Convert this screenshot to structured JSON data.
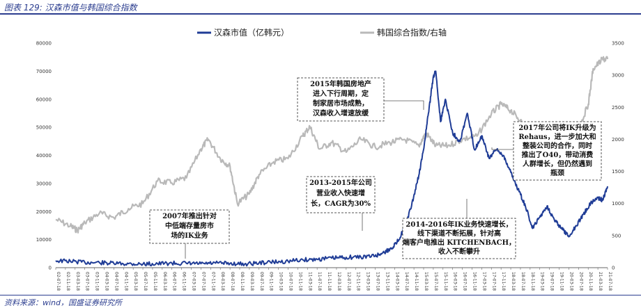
{
  "header": {
    "title": "图表 129: 汉森市值与韩国综合指数"
  },
  "footer": {
    "source": "资料来源：wind，国盛证券研究所"
  },
  "colors": {
    "series_main": "#1f3c96",
    "series_index": "#b9b9b9",
    "note_border": "#555555"
  },
  "chart_data": {
    "type": "line",
    "title": "",
    "legend_position": "top-center",
    "grid": false,
    "y_left": {
      "lim": [
        0,
        80000
      ],
      "ticks": [
        "0",
        "10000",
        "20000",
        "30000",
        "40000",
        "50000",
        "60000",
        "70000",
        "80000"
      ]
    },
    "y_right": {
      "lim": [
        0,
        3500
      ],
      "ticks": [
        "0",
        "500",
        "1000",
        "1500",
        "2000",
        "2500",
        "3000",
        "3500"
      ]
    },
    "x_range": [
      "2002-07-18",
      "2021-07-18"
    ],
    "x_ticks": [
      "02-07-18",
      "02-11-18",
      "03-03-18",
      "03-07-18",
      "03-11-18",
      "04-03-18",
      "04-07-18",
      "04-11-18",
      "05-03-18",
      "05-07-18",
      "05-11-18",
      "06-03-18",
      "06-07-18",
      "06-11-18",
      "07-03-18",
      "07-07-18",
      "07-11-18",
      "08-03-18",
      "08-07-18",
      "08-11-18",
      "09-03-18",
      "09-07-18",
      "09-11-18",
      "10-03-18",
      "10-07-18",
      "10-11-18",
      "11-03-18",
      "11-07-18",
      "11-11-18",
      "12-03-18",
      "12-07-18",
      "12-11-18",
      "13-03-18",
      "13-07-18",
      "13-11-18",
      "14-03-18",
      "14-07-18",
      "14-11-18",
      "15-03-18",
      "15-07-18",
      "15-11-18",
      "16-03-18",
      "16-07-18",
      "16-11-18",
      "17-03-18",
      "17-07-18",
      "17-11-18",
      "18-03-18",
      "18-07-18",
      "18-11-18",
      "19-03-18",
      "19-07-18",
      "19-11-18",
      "20-03-18",
      "20-07-18",
      "20-11-18",
      "21-03-18",
      "21-07-18"
    ],
    "series": [
      {
        "name": "汉森市值（亿韩元）",
        "axis": "left",
        "x": [
          "2002-07-18",
          "2003-01-18",
          "2003-07-18",
          "2004-01-18",
          "2004-07-18",
          "2005-01-18",
          "2005-07-18",
          "2006-01-18",
          "2006-07-18",
          "2007-01-18",
          "2007-07-18",
          "2008-01-18",
          "2008-07-18",
          "2009-01-18",
          "2009-07-18",
          "2010-01-18",
          "2010-07-18",
          "2011-01-18",
          "2011-07-18",
          "2012-01-18",
          "2012-07-18",
          "2013-01-18",
          "2013-07-18",
          "2013-10-18",
          "2014-01-18",
          "2014-04-18",
          "2014-07-18",
          "2014-10-18",
          "2015-01-18",
          "2015-03-18",
          "2015-05-18",
          "2015-07-18",
          "2015-08-18",
          "2015-10-18",
          "2015-12-18",
          "2016-03-18",
          "2016-06-18",
          "2016-09-18",
          "2016-12-18",
          "2017-03-18",
          "2017-06-18",
          "2017-09-18",
          "2017-12-18",
          "2018-03-18",
          "2018-06-18",
          "2018-09-18",
          "2018-12-18",
          "2019-03-18",
          "2019-06-18",
          "2019-09-18",
          "2019-12-18",
          "2020-03-18",
          "2020-06-18",
          "2020-09-18",
          "2020-12-18",
          "2021-03-18",
          "2021-05-18",
          "2021-07-18"
        ],
        "values": [
          2500,
          2300,
          1900,
          1800,
          1500,
          1400,
          1300,
          1400,
          1600,
          1500,
          1400,
          1600,
          1500,
          1300,
          1700,
          2000,
          2300,
          2800,
          3000,
          3400,
          3700,
          3800,
          4200,
          5200,
          6500,
          9000,
          14000,
          22000,
          33000,
          42000,
          55000,
          68000,
          70000,
          52000,
          60000,
          48000,
          45000,
          55000,
          42000,
          47000,
          39000,
          42000,
          40000,
          34000,
          28000,
          22000,
          14000,
          18000,
          22000,
          17000,
          14000,
          11000,
          15000,
          19000,
          23000,
          25000,
          24000,
          29000
        ]
      },
      {
        "name": "韩国综合指数/右轴",
        "axis": "right",
        "x": [
          "2002-07-18",
          "2003-01-18",
          "2003-04-18",
          "2003-07-18",
          "2004-01-18",
          "2004-07-18",
          "2005-01-18",
          "2005-07-18",
          "2006-01-18",
          "2006-07-18",
          "2007-01-18",
          "2007-07-18",
          "2007-10-18",
          "2008-03-18",
          "2008-07-18",
          "2008-10-18",
          "2009-03-18",
          "2009-07-18",
          "2010-01-18",
          "2010-07-18",
          "2011-01-18",
          "2011-04-18",
          "2011-08-18",
          "2012-01-18",
          "2012-07-18",
          "2013-01-18",
          "2013-07-18",
          "2014-01-18",
          "2014-07-18",
          "2015-01-18",
          "2015-04-18",
          "2015-08-18",
          "2016-01-18",
          "2016-07-18",
          "2017-01-18",
          "2017-07-18",
          "2017-11-18",
          "2018-03-18",
          "2018-07-18",
          "2018-10-18",
          "2019-03-18",
          "2019-08-18",
          "2020-01-18",
          "2020-03-18",
          "2020-07-18",
          "2020-11-18",
          "2021-01-18",
          "2021-05-18",
          "2021-07-18"
        ],
        "values": [
          750,
          650,
          580,
          700,
          850,
          780,
          920,
          1000,
          1350,
          1320,
          1400,
          1850,
          2000,
          1700,
          1580,
          1000,
          1150,
          1450,
          1650,
          1700,
          2050,
          2200,
          1850,
          1950,
          1800,
          2000,
          1880,
          1950,
          2000,
          1900,
          2100,
          1900,
          1900,
          2000,
          2050,
          2400,
          2550,
          2450,
          2300,
          2050,
          2150,
          1950,
          2200,
          1500,
          2150,
          2550,
          3100,
          3250,
          3250
        ]
      }
    ],
    "annotations": [
      {
        "lines": [
          "2007年推出针对",
          "中低端存量房市",
          "场的IK业务"
        ]
      },
      {
        "lines": [
          "2015年韩国房地产",
          "进入下行周期，定",
          "制家居市场成熟，",
          "汉森收入增速放缓"
        ]
      },
      {
        "lines": [
          "2013-2015年公司",
          "营业收入快速增",
          "长，CAGR为30%"
        ]
      },
      {
        "lines": [
          "2014-2016年IK业务快速增长，",
          "线下渠道不断拓展，针对高",
          "端客户电推出 KITCHENBACH，",
          "收入不断攀升"
        ]
      },
      {
        "lines": [
          "2017年公司将IK升级为",
          "Rehaus，进一步加大和",
          "整装公司的合作，同时",
          "推出了O40，带动消费",
          "人群增长，但仍然遇到",
          "瓶颈"
        ]
      }
    ]
  }
}
